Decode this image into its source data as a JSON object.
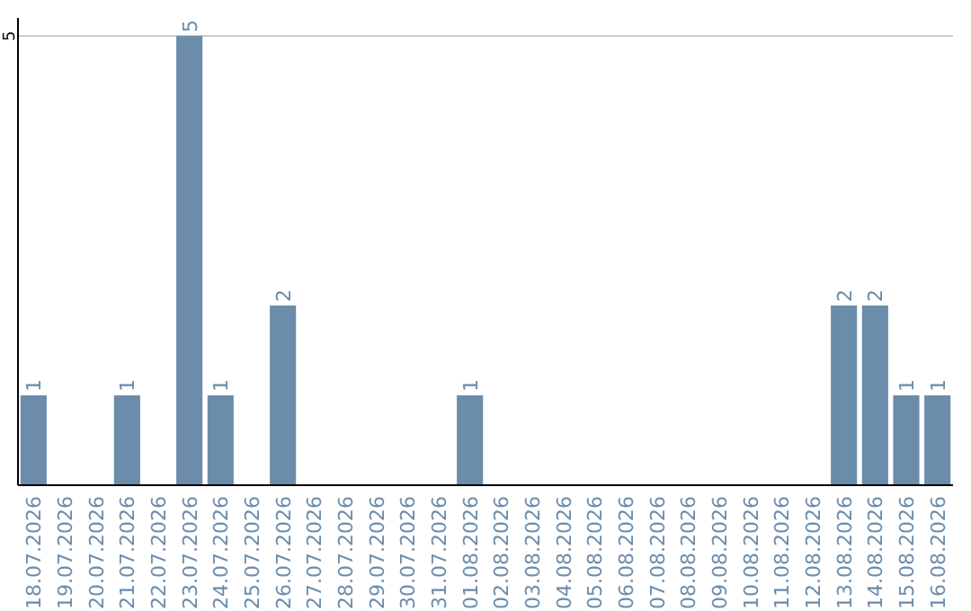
{
  "chart_data": {
    "type": "bar",
    "categories": [
      "18.07.2026",
      "19.07.2026",
      "20.07.2026",
      "21.07.2026",
      "22.07.2026",
      "23.07.2026",
      "24.07.2026",
      "25.07.2026",
      "26.07.2026",
      "27.07.2026",
      "28.07.2026",
      "29.07.2026",
      "30.07.2026",
      "31.07.2026",
      "01.08.2026",
      "02.08.2026",
      "03.08.2026",
      "04.08.2026",
      "05.08.2026",
      "06.08.2026",
      "07.08.2026",
      "08.08.2026",
      "09.08.2026",
      "10.08.2026",
      "11.08.2026",
      "12.08.2026",
      "13.08.2026",
      "14.08.2026",
      "15.08.2026",
      "16.08.2026"
    ],
    "values": [
      1,
      0,
      0,
      1,
      0,
      5,
      1,
      0,
      2,
      0,
      0,
      0,
      0,
      0,
      1,
      0,
      0,
      0,
      0,
      0,
      0,
      0,
      0,
      0,
      0,
      0,
      2,
      2,
      1,
      1
    ],
    "value_labels": [
      "1",
      null,
      null,
      "1",
      null,
      "5",
      "1",
      null,
      "2",
      null,
      null,
      null,
      null,
      null,
      "1",
      null,
      null,
      null,
      null,
      null,
      null,
      null,
      null,
      null,
      null,
      null,
      "2",
      "2",
      "1",
      "1"
    ],
    "color": "#6b8cab",
    "ylim": [
      0,
      5.2
    ],
    "yticks": [
      5
    ],
    "grid": "y"
  }
}
